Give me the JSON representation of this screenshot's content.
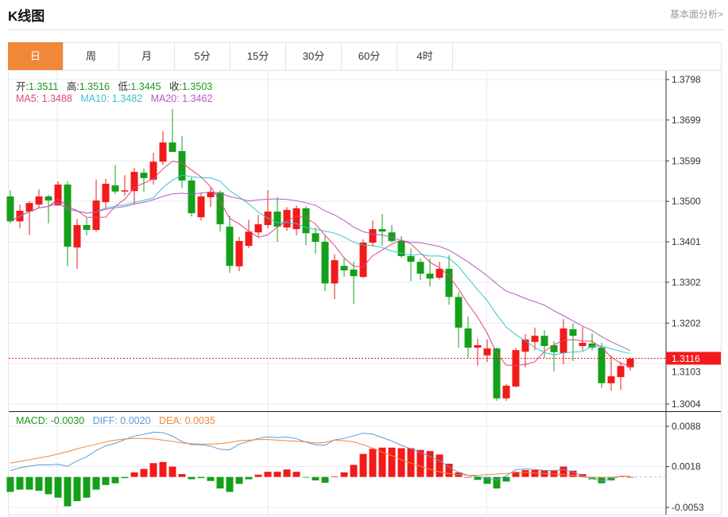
{
  "header": {
    "title": "K线图",
    "link": "基本面分析>"
  },
  "tabs": [
    {
      "label": "日",
      "active": true
    },
    {
      "label": "周"
    },
    {
      "label": "月"
    },
    {
      "label": "5分"
    },
    {
      "label": "15分"
    },
    {
      "label": "30分"
    },
    {
      "label": "60分"
    },
    {
      "label": "4时"
    }
  ],
  "ohlc_info": {
    "open_label": "开:",
    "open": "1.3511",
    "high_label": "高:",
    "high": "1.3516",
    "low_label": "低:",
    "low": "1.3445",
    "close_label": "收:",
    "close": "1.3503"
  },
  "ma_info": {
    "ma5": "MA5: 1.3488",
    "ma10": "MA10: 1.3482",
    "ma20": "MA20: 1.3462"
  },
  "macd_info": {
    "macd": "MACD: -0.0030",
    "diff": "DIFF: 0.0020",
    "dea": "DEA: 0.0035"
  },
  "current_price": "1.3116",
  "colors": {
    "up": "#f21a1a",
    "down": "#14a01a",
    "ma5": "#e0457b",
    "ma10": "#3cc0d0",
    "ma20": "#b55cc0",
    "diff": "#5b9bd5",
    "dea": "#f0883a",
    "accent": "#f0883a"
  },
  "chart_data": [
    {
      "type": "candlestick",
      "y_ticks": [
        "1.3798",
        "1.3699",
        "1.3599",
        "1.3500",
        "1.3401",
        "1.3302",
        "1.3202",
        "1.3103",
        "1.3004"
      ],
      "ylim": [
        1.3004,
        1.3798
      ],
      "grid": true,
      "candles": [
        [
          1.3512,
          1.3527,
          1.3446,
          1.3451
        ],
        [
          1.3451,
          1.3492,
          1.3434,
          1.3477
        ],
        [
          1.3475,
          1.35,
          1.3417,
          1.3496
        ],
        [
          1.3492,
          1.3529,
          1.3483,
          1.3512
        ],
        [
          1.3512,
          1.3516,
          1.3446,
          1.3502
        ],
        [
          1.349,
          1.3549,
          1.349,
          1.3541
        ],
        [
          1.3541,
          1.3549,
          1.3341,
          1.3389
        ],
        [
          1.3387,
          1.3457,
          1.3335,
          1.3442
        ],
        [
          1.3442,
          1.3459,
          1.3417,
          1.343
        ],
        [
          1.343,
          1.3553,
          1.3426,
          1.3502
        ],
        [
          1.3498,
          1.3555,
          1.3481,
          1.3543
        ],
        [
          1.3539,
          1.3589,
          1.3518,
          1.3524
        ],
        [
          1.3524,
          1.3564,
          1.3514,
          1.3527
        ],
        [
          1.3525,
          1.3582,
          1.3492,
          1.3572
        ],
        [
          1.357,
          1.358,
          1.3524,
          1.3557
        ],
        [
          1.3553,
          1.3619,
          1.3541,
          1.3597
        ],
        [
          1.3597,
          1.3671,
          1.3589,
          1.3644
        ],
        [
          1.3644,
          1.3726,
          1.3621,
          1.3621
        ],
        [
          1.3623,
          1.366,
          1.3533,
          1.3551
        ],
        [
          1.3551,
          1.3559,
          1.3463,
          1.3471
        ],
        [
          1.3461,
          1.352,
          1.3453,
          1.3512
        ],
        [
          1.351,
          1.3533,
          1.3486,
          1.3522
        ],
        [
          1.3522,
          1.3527,
          1.3426,
          1.3444
        ],
        [
          1.3438,
          1.3465,
          1.3325,
          1.3342
        ],
        [
          1.3341,
          1.3413,
          1.3329,
          1.3403
        ],
        [
          1.3391,
          1.3455,
          1.3386,
          1.3426
        ],
        [
          1.3424,
          1.3467,
          1.3413,
          1.3444
        ],
        [
          1.3442,
          1.3527,
          1.3434,
          1.3475
        ],
        [
          1.3475,
          1.351,
          1.3401,
          1.3438
        ],
        [
          1.3436,
          1.3486,
          1.3428,
          1.3479
        ],
        [
          1.3432,
          1.349,
          1.3417,
          1.3483
        ],
        [
          1.3483,
          1.3488,
          1.3393,
          1.3422
        ],
        [
          1.3422,
          1.3436,
          1.3372,
          1.3401
        ],
        [
          1.3401,
          1.3415,
          1.328,
          1.3299
        ],
        [
          1.3299,
          1.337,
          1.3261,
          1.3356
        ],
        [
          1.3342,
          1.3362,
          1.3315,
          1.3331
        ],
        [
          1.3333,
          1.3352,
          1.3249,
          1.3317
        ],
        [
          1.3315,
          1.3407,
          1.3313,
          1.3399
        ],
        [
          1.3399,
          1.3453,
          1.3389,
          1.3432
        ],
        [
          1.3432,
          1.3469,
          1.3391,
          1.3426
        ],
        [
          1.3424,
          1.3442,
          1.3399,
          1.3403
        ],
        [
          1.3403,
          1.3415,
          1.3362,
          1.3366
        ],
        [
          1.3366,
          1.3385,
          1.3305,
          1.3352
        ],
        [
          1.3352,
          1.336,
          1.3307,
          1.3323
        ],
        [
          1.3323,
          1.336,
          1.3292,
          1.3311
        ],
        [
          1.3313,
          1.3352,
          1.3309,
          1.3335
        ],
        [
          1.3335,
          1.3368,
          1.3247,
          1.3266
        ],
        [
          1.3266,
          1.3278,
          1.3142,
          1.3191
        ],
        [
          1.3189,
          1.3218,
          1.3117,
          1.3142
        ],
        [
          1.3142,
          1.3164,
          1.3098,
          1.3148
        ],
        [
          1.3123,
          1.3162,
          1.3107,
          1.314
        ],
        [
          1.314,
          1.3142,
          1.3012,
          1.3018
        ],
        [
          1.3018,
          1.3053,
          1.3012,
          1.3049
        ],
        [
          1.3047,
          1.3142,
          1.3045,
          1.3136
        ],
        [
          1.3132,
          1.3175,
          1.3094,
          1.3162
        ],
        [
          1.3156,
          1.3191,
          1.3136,
          1.3171
        ],
        [
          1.3171,
          1.3185,
          1.3117,
          1.3146
        ],
        [
          1.3148,
          1.3158,
          1.3084,
          1.3131
        ],
        [
          1.3129,
          1.3212,
          1.3101,
          1.3189
        ],
        [
          1.3187,
          1.3201,
          1.3109,
          1.3171
        ],
        [
          1.3146,
          1.3193,
          1.3135,
          1.3154
        ],
        [
          1.3152,
          1.3177,
          1.3135,
          1.3142
        ],
        [
          1.3142,
          1.3154,
          1.3043,
          1.3055
        ],
        [
          1.3055,
          1.3123,
          1.3037,
          1.3072
        ],
        [
          1.307,
          1.3107,
          1.3039,
          1.3097
        ],
        [
          1.3094,
          1.3117,
          1.3086,
          1.3115
        ]
      ],
      "series": [
        {
          "name": "MA5",
          "period": 5
        },
        {
          "name": "MA10",
          "period": 10
        },
        {
          "name": "MA20",
          "period": 20
        }
      ]
    },
    {
      "type": "bar",
      "y_ticks": [
        "0.0088",
        "0.0018",
        "-0.0053"
      ],
      "ylim": [
        -0.0053,
        0.0088
      ],
      "macd": [
        -0.0026,
        -0.0022,
        -0.0022,
        -0.0024,
        -0.003,
        -0.0036,
        -0.0051,
        -0.0042,
        -0.0036,
        -0.0022,
        -0.0014,
        -0.0011,
        -0.0002,
        0.0008,
        0.0014,
        0.0024,
        0.0026,
        0.0018,
        0.0005,
        -0.0004,
        -0.0002,
        -0.0007,
        -0.002,
        -0.0026,
        -0.0012,
        -0.0004,
        0.0004,
        0.0009,
        0.0009,
        0.0013,
        0.0009,
        -0.0001,
        -0.0006,
        -0.001,
        0.0001,
        0.0008,
        0.0021,
        0.004,
        0.0049,
        0.0051,
        0.0051,
        0.005,
        0.005,
        0.0047,
        0.0045,
        0.0039,
        0.0023,
        0.0008,
        0.0,
        -0.0005,
        -0.0012,
        -0.002,
        -0.0008,
        0.0009,
        0.0012,
        0.0012,
        0.0011,
        0.0012,
        0.0018,
        0.0011,
        0.0005,
        -0.0004,
        -0.0011,
        -0.0006,
        0.0001,
        0.0
      ],
      "dea": [
        0.0024,
        0.0027,
        0.003,
        0.0033,
        0.0036,
        0.004,
        0.0044,
        0.0049,
        0.0053,
        0.0057,
        0.0061,
        0.0064,
        0.0066,
        0.0067,
        0.0067,
        0.0066,
        0.0064,
        0.0062,
        0.0059,
        0.0058,
        0.0057,
        0.0057,
        0.0058,
        0.006,
        0.0063,
        0.0064,
        0.0065,
        0.0065,
        0.0064,
        0.0063,
        0.0062,
        0.0061,
        0.0059,
        0.006,
        0.0064,
        0.0063,
        0.0061,
        0.0056,
        0.005,
        0.0043,
        0.0037,
        0.003,
        0.0024,
        0.0019,
        0.0013,
        0.0009,
        0.0006,
        0.0004,
        0.0003,
        0.0003,
        0.0004,
        0.0005,
        0.0006,
        0.0008,
        0.0008,
        0.0007,
        0.0006,
        0.0005,
        0.0004,
        0.0003,
        0.0,
        -0.0001,
        -0.0001,
        -0.0001,
        0.0001,
        0.0001
      ]
    }
  ]
}
